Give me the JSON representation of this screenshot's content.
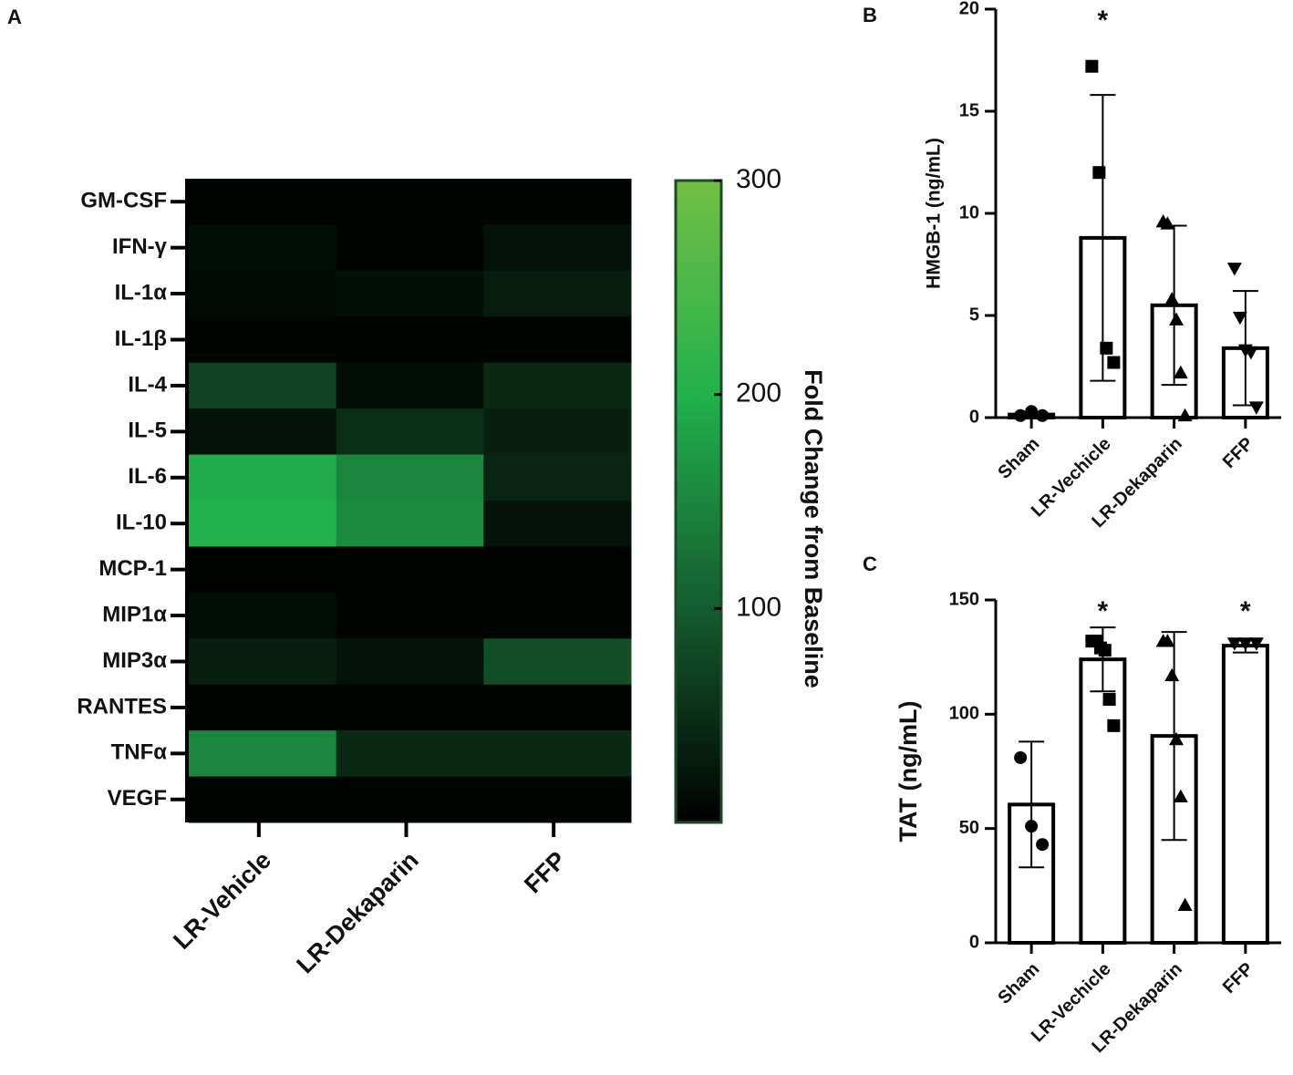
{
  "chart_data": [
    {
      "type": "heatmap",
      "panel_label": "A",
      "rows": [
        "GM-CSF",
        "IFN-γ",
        "IL-1α",
        "IL-1β",
        "IL-4",
        "IL-5",
        "IL-6",
        "IL-10",
        "MCP-1",
        "MIP1α",
        "MIP3α",
        "RANTES",
        "TNFα",
        "VEGF"
      ],
      "columns": [
        "LR-Vehicle",
        "LR-Dekaparin",
        "FFP"
      ],
      "values": [
        [
          5,
          5,
          5
        ],
        [
          15,
          3,
          20
        ],
        [
          12,
          15,
          30
        ],
        [
          5,
          5,
          3
        ],
        [
          70,
          15,
          45
        ],
        [
          20,
          50,
          35
        ],
        [
          195,
          150,
          40
        ],
        [
          200,
          155,
          20
        ],
        [
          3,
          3,
          3
        ],
        [
          15,
          5,
          5
        ],
        [
          35,
          20,
          85
        ],
        [
          3,
          3,
          3
        ],
        [
          150,
          45,
          45
        ],
        [
          5,
          5,
          5
        ]
      ],
      "colorbar_label": "Fold Change from Baseline",
      "zlim": [
        0,
        300
      ],
      "zticks": [
        100,
        200,
        300
      ],
      "colormap": [
        "#000000",
        "#145c2f",
        "#22b14c",
        "#72bf44"
      ]
    },
    {
      "type": "bar",
      "panel_label": "B",
      "ylabel": "HMGB-1 (ng/mL)",
      "categories": [
        "Sham",
        "LR-Vechicle",
        "LR-Dekaparin",
        "FFP"
      ],
      "values": [
        0.15,
        8.8,
        5.5,
        3.4
      ],
      "errors": [
        0.1,
        7.0,
        3.9,
        2.8
      ],
      "points": [
        [
          0.1,
          0.3,
          0.1
        ],
        [
          17.2,
          12,
          3.4,
          2.7
        ],
        [
          9.6,
          9.5,
          5.8,
          4.8,
          2.2,
          0.1
        ],
        [
          7.3,
          4.9,
          3.3,
          3.2,
          0.5
        ]
      ],
      "markers": [
        "circle",
        "square",
        "triangle",
        "triangle-down"
      ],
      "annotations": [
        null,
        "*",
        null,
        null
      ],
      "ylim": [
        0,
        20
      ],
      "yticks": [
        0,
        5,
        10,
        15,
        20
      ]
    },
    {
      "type": "bar",
      "panel_label": "C",
      "ylabel": "TAT (ng/mL)",
      "categories": [
        "Sham",
        "LR-Vechicle",
        "LR-Dekaparin",
        "FFP"
      ],
      "values": [
        60.5,
        124,
        90.5,
        130
      ],
      "errors": [
        27.5,
        14,
        45.5,
        3
      ],
      "points": [
        [
          81,
          51,
          43
        ],
        [
          132,
          132,
          129,
          128,
          106.5,
          95
        ],
        [
          132,
          132,
          117,
          89,
          64,
          16.5
        ],
        [
          131,
          131,
          131
        ]
      ],
      "markers": [
        "circle",
        "square",
        "triangle",
        "triangle-down"
      ],
      "annotations": [
        null,
        "*",
        null,
        "*"
      ],
      "ylim": [
        0,
        150
      ],
      "yticks": [
        0,
        50,
        100,
        150
      ]
    }
  ]
}
